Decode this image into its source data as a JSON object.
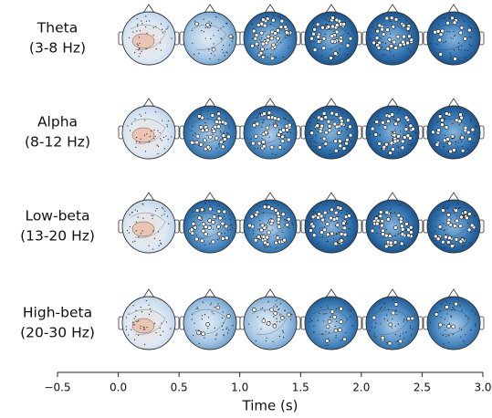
{
  "rows": [
    {
      "name": "Theta",
      "band": "(3-8 Hz)"
    },
    {
      "name": "Alpha",
      "band": "(8-12 Hz)"
    },
    {
      "name": "Low-beta",
      "band": "(13-20 Hz)"
    },
    {
      "name": "High-beta",
      "band": "(20-30 Hz)"
    }
  ],
  "time_axis": {
    "label": "Time (s)",
    "xlim": [
      -0.5,
      3.0
    ],
    "xticks": [
      {
        "value": -0.5,
        "label": "−0.5"
      },
      {
        "value": 0,
        "label": "0.0"
      },
      0.5,
      {
        "value": 1,
        "label": "1.0"
      },
      1.5,
      {
        "value": 2,
        "label": "2.0"
      },
      2.5,
      {
        "value": 3,
        "label": "3.0"
      }
    ]
  }
}
